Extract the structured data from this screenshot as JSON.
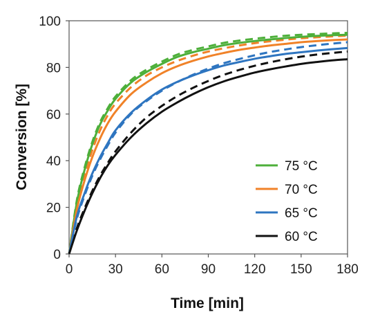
{
  "chart_data": {
    "type": "line",
    "xlabel": "Time [min]",
    "ylabel": "Conversion [%]",
    "xlim": [
      0,
      180
    ],
    "ylim": [
      0,
      100
    ],
    "xticks": [
      0,
      30,
      60,
      90,
      120,
      150,
      180
    ],
    "yticks": [
      0,
      20,
      40,
      60,
      80,
      100
    ],
    "grid": false,
    "legend_position": "bottom-right",
    "x": [
      0,
      5,
      10,
      15,
      20,
      25,
      30,
      40,
      50,
      60,
      70,
      80,
      90,
      100,
      110,
      120,
      130,
      140,
      150,
      160,
      170,
      180
    ],
    "series": [
      {
        "name": "75 °C",
        "color": "#4DAF3A",
        "values": [
          0,
          22,
          36,
          47,
          55.5,
          61.5,
          66.5,
          73.5,
          78,
          81.5,
          84.5,
          86.5,
          88,
          89.5,
          90.5,
          91.3,
          92,
          92.6,
          93.1,
          93.5,
          93.8,
          94
        ]
      },
      {
        "name": "70 °C",
        "color": "#F08228",
        "values": [
          0,
          19,
          31.5,
          41.5,
          49.5,
          56,
          61,
          68.5,
          73.5,
          77.5,
          80.5,
          82.8,
          84.7,
          86.2,
          87.5,
          88.5,
          89.4,
          90.1,
          90.8,
          91.3,
          91.7,
          92
        ]
      },
      {
        "name": "65 °C",
        "color": "#2E75C0",
        "values": [
          0,
          16,
          26,
          34.5,
          41.5,
          47.5,
          53,
          60.5,
          66,
          70.5,
          73.8,
          76.5,
          78.8,
          80.8,
          82.3,
          83.7,
          84.8,
          85.8,
          86.5,
          87.2,
          87.8,
          88.3
        ]
      },
      {
        "name": "60 °C",
        "color": "#111111",
        "values": [
          0,
          10,
          18.5,
          26,
          32.5,
          38,
          42.5,
          50,
          56,
          61,
          65,
          68.5,
          71.5,
          74,
          76,
          77.8,
          79.2,
          80.4,
          81.5,
          82.3,
          83,
          83.5
        ]
      }
    ],
    "dashed_companions": [
      {
        "name": "75 °C",
        "color": "#4DAF3A",
        "values": [
          0,
          23,
          37,
          48,
          56.5,
          62.5,
          67.5,
          74.5,
          79,
          82.5,
          85.5,
          87.5,
          89,
          90.5,
          91.5,
          92.3,
          93,
          93.6,
          94,
          94.3,
          94.6,
          94.8
        ]
      },
      {
        "name": "70 °C",
        "color": "#F08228",
        "values": [
          0,
          21,
          34,
          44.5,
          53,
          59.5,
          64.5,
          71.5,
          76.5,
          80,
          82.8,
          85,
          86.8,
          88.2,
          89.4,
          90.4,
          91.2,
          91.9,
          92.5,
          92.9,
          93.3,
          93.6
        ]
      },
      {
        "name": "65 °C",
        "color": "#2E75C0",
        "values": [
          0,
          15,
          25,
          33.5,
          40.5,
          46.5,
          52,
          60,
          65.5,
          70,
          73.7,
          76.8,
          79.5,
          81.8,
          83.6,
          85.2,
          86.6,
          87.7,
          88.7,
          89.5,
          90.2,
          90.8
        ]
      },
      {
        "name": "60 °C",
        "color": "#111111",
        "values": [
          0,
          11,
          19.5,
          27,
          33.5,
          39,
          44,
          52,
          58.5,
          63.5,
          67.7,
          71.2,
          74.2,
          76.8,
          78.9,
          80.7,
          82.2,
          83.5,
          84.6,
          85.5,
          86.2,
          86.8
        ]
      }
    ]
  }
}
